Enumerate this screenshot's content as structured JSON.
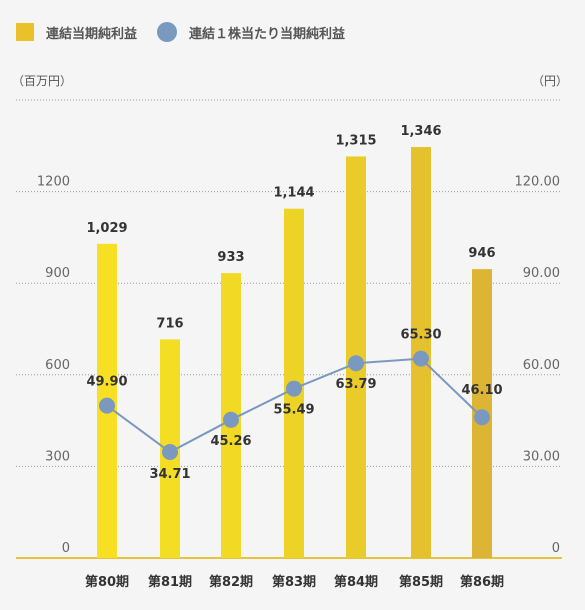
{
  "legend": {
    "bar_label": "連結当期純利益",
    "line_label": "連結１株当たり当期純利益"
  },
  "units": {
    "left": "（百万円）",
    "right": "（円）"
  },
  "chart_data": {
    "type": "bar",
    "categories": [
      "第80期",
      "第81期",
      "第82期",
      "第83期",
      "第84期",
      "第85期",
      "第86期"
    ],
    "series": [
      {
        "name": "連結当期純利益",
        "type": "bar",
        "axis": "left",
        "values": [
          1029,
          716,
          933,
          1144,
          1315,
          1346,
          946
        ],
        "labels": [
          "1,029",
          "716",
          "933",
          "1,144",
          "1,315",
          "1,346",
          "946"
        ],
        "colors": [
          "#f7e023",
          "#f4de23",
          "#f1d924",
          "#eed327",
          "#e9cb2a",
          "#e5c22d",
          "#dbb533"
        ]
      },
      {
        "name": "連結１株当たり当期純利益",
        "type": "line",
        "axis": "right",
        "values": [
          49.9,
          34.71,
          45.26,
          55.49,
          63.79,
          65.3,
          46.1
        ],
        "labels": [
          "49.90",
          "34.71",
          "45.26",
          "55.49",
          "63.79",
          "65.30",
          "46.10"
        ],
        "color": "#7b98bf"
      }
    ],
    "y_left": {
      "range": [
        0,
        1500
      ],
      "ticks": [
        "0",
        "300",
        "600",
        "900",
        "1200"
      ]
    },
    "y_right": {
      "range": [
        0,
        150
      ],
      "ticks": [
        "0",
        "30.00",
        "60.00",
        "90.00",
        "120.00"
      ]
    },
    "grid": true
  }
}
